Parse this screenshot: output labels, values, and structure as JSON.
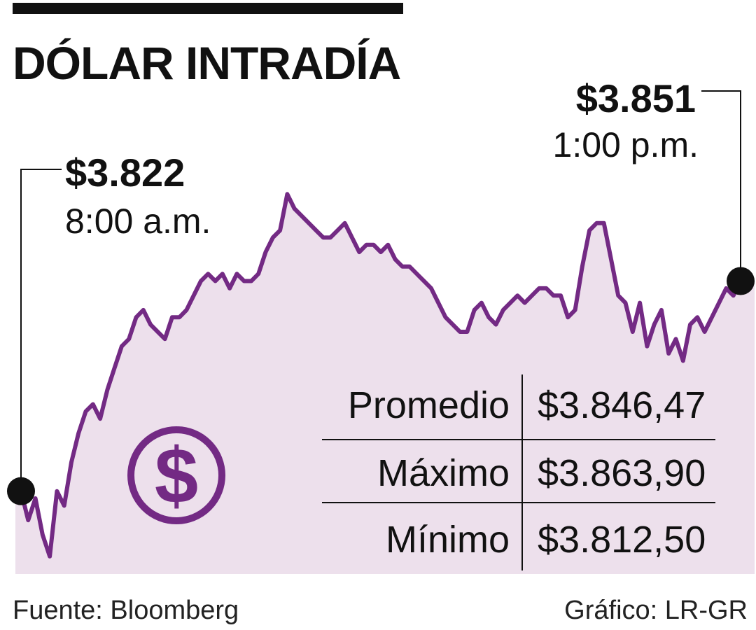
{
  "chart_data": {
    "type": "area",
    "title": "DÓLAR INTRADÍA",
    "xlabel": "",
    "ylabel": "",
    "x_range": [
      "8:00 a.m.",
      "1:00 p.m."
    ],
    "ylim": [
      3812.5,
      3863.9
    ],
    "series": [
      {
        "x_hours": [
          0,
          0.05,
          0.1,
          0.15,
          0.2,
          0.25,
          0.3,
          0.35,
          0.4,
          0.45,
          0.5,
          0.55,
          0.6,
          0.65,
          0.7,
          0.75,
          0.8,
          0.85,
          0.9,
          0.95,
          1.0,
          1.05,
          1.1,
          1.15,
          1.2,
          1.25,
          1.3,
          1.35,
          1.4,
          1.45,
          1.5,
          1.55,
          1.6,
          1.65,
          1.7,
          1.75,
          1.8,
          1.85,
          1.9,
          1.95,
          2.0,
          2.05,
          2.1,
          2.15,
          2.2,
          2.25,
          2.3,
          2.35,
          2.4,
          2.45,
          2.5,
          2.55,
          2.6,
          2.65,
          2.7,
          2.75,
          2.8,
          2.85,
          2.9,
          2.95,
          3.0,
          3.05,
          3.1,
          3.15,
          3.2,
          3.25,
          3.3,
          3.35,
          3.4,
          3.45,
          3.5,
          3.55,
          3.6,
          3.65,
          3.7,
          3.75,
          3.8,
          3.85,
          3.9,
          3.95,
          4.0,
          4.05,
          4.1,
          4.15,
          4.2,
          4.25,
          4.3,
          4.35,
          4.4,
          4.45,
          4.5,
          4.55,
          4.6,
          4.65,
          4.7,
          4.75,
          4.8,
          4.85,
          4.9,
          4.95,
          5.0
        ],
        "values": [
          3822,
          3818,
          3821,
          3816,
          3813,
          3822,
          3820,
          3826,
          3830,
          3833,
          3834,
          3832,
          3836,
          3839,
          3842,
          3843,
          3846,
          3847,
          3845,
          3844,
          3843,
          3846,
          3846,
          3847,
          3849,
          3851,
          3852,
          3851,
          3852,
          3850,
          3852,
          3851,
          3851,
          3852,
          3855,
          3857,
          3858,
          3863,
          3861,
          3860,
          3859,
          3858,
          3857,
          3857,
          3858,
          3859,
          3857,
          3855,
          3856,
          3856,
          3855,
          3856,
          3854,
          3853,
          3853,
          3852,
          3851,
          3850,
          3848,
          3846,
          3845,
          3844,
          3844,
          3847,
          3848,
          3846,
          3845,
          3847,
          3848,
          3849,
          3848,
          3849,
          3850,
          3850,
          3849,
          3849,
          3846,
          3847,
          3853,
          3858,
          3859,
          3859,
          3854,
          3849,
          3848,
          3844,
          3848,
          3842,
          3845,
          3847,
          3841,
          3843,
          3840,
          3845,
          3846,
          3844,
          3846,
          3848,
          3850,
          3849,
          3851
        ]
      }
    ],
    "annotations": {
      "start": {
        "value": "$3.822",
        "time": "8:00 a.m."
      },
      "end": {
        "value": "$3.851",
        "time": "1:00 p.m."
      }
    },
    "stats": [
      {
        "label": "Promedio",
        "value": "$3.846,47"
      },
      {
        "label": "Máximo",
        "value": "$3.863,90"
      },
      {
        "label": "Mínimo",
        "value": "$3.812,50"
      }
    ],
    "colors": {
      "line": "#732a84",
      "fill": "#ede0ec",
      "icon": "#732a84",
      "dot": "#111111"
    },
    "grid": false,
    "legend": "none"
  },
  "footer": {
    "source": "Fuente: Bloomberg",
    "credit": "Gráfico: LR-GR"
  }
}
